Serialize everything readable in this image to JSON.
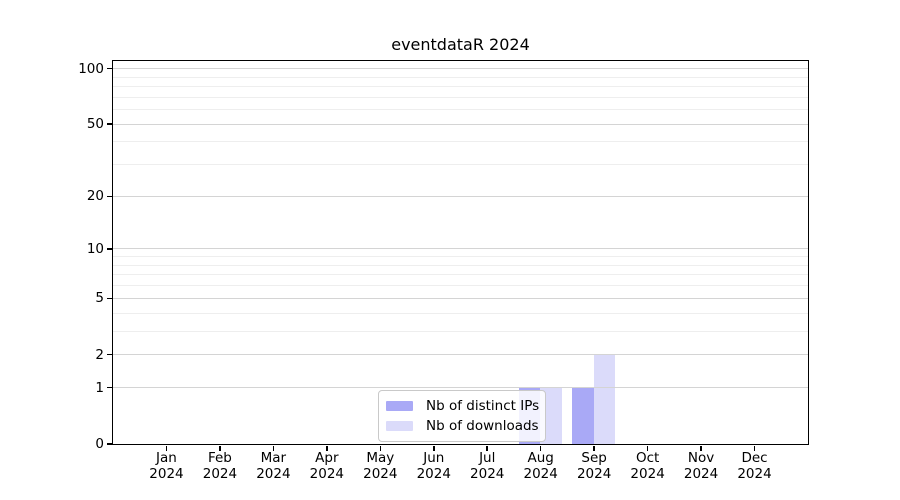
{
  "chart_data": {
    "type": "bar",
    "title": "eventdataR 2024",
    "categories": [
      "Jan 2024",
      "Feb 2024",
      "Mar 2024",
      "Apr 2024",
      "May 2024",
      "Jun 2024",
      "Jul 2024",
      "Aug 2024",
      "Sep 2024",
      "Oct 2024",
      "Nov 2024",
      "Dec 2024"
    ],
    "series": [
      {
        "name": "Nb of distinct IPs",
        "color": "#a9a9f6",
        "values": [
          0,
          0,
          0,
          0,
          0,
          0,
          0,
          1,
          1,
          0,
          0,
          0
        ]
      },
      {
        "name": "Nb of downloads",
        "color": "#dbdbfa",
        "values": [
          0,
          0,
          0,
          0,
          0,
          0,
          0,
          1,
          2,
          0,
          0,
          0
        ]
      }
    ],
    "yscale": "log1p",
    "ylim": [
      0,
      110
    ],
    "yticks": [
      0,
      1,
      2,
      5,
      10,
      20,
      50,
      100
    ],
    "yminor_gridlines": [
      3,
      4,
      6,
      7,
      8,
      9,
      30,
      40,
      60,
      70,
      80,
      90
    ],
    "grid": "horizontal-only",
    "legend_position": "inside-lower-center",
    "colors": {
      "major_grid": "#d4d4d4",
      "minor_grid": "#eeeeee",
      "spine": "#000000",
      "tick_label": "#000000"
    }
  }
}
